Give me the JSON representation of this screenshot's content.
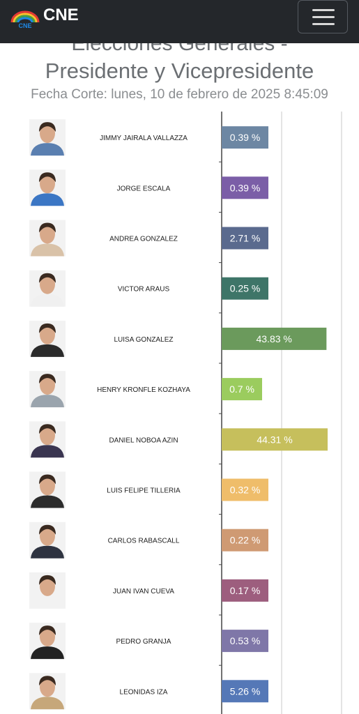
{
  "header": {
    "brand": "CNE",
    "logo_text": "CNE",
    "logo_icon": "cne-rainbow-logo-icon",
    "menu_icon": "hamburger-menu-icon"
  },
  "page": {
    "title_line1": "Elecciones Generales -",
    "title_line2": "Presidente y Vicepresidente",
    "cutoff": "Fecha Corte: lunes, 10 de febrero de 2025 8:45:09"
  },
  "chart_data": {
    "type": "bar",
    "orientation": "horizontal",
    "categories": [
      "JIMMY JAIRALA VALLAZZA",
      "JORGE ESCALA",
      "ANDREA GONZALEZ",
      "VICTOR ARAUS",
      "LUISA GONZALEZ",
      "HENRY KRONFLE KOZHAYA",
      "DANIEL NOBOA AZIN",
      "LUIS FELIPE TILLERIA",
      "CARLOS RABASCALL",
      "JUAN IVAN CUEVA",
      "PEDRO GRANJA",
      "LEONIDAS IZA"
    ],
    "values": [
      0.39,
      0.39,
      2.71,
      0.25,
      43.83,
      0.7,
      44.31,
      0.32,
      0.22,
      0.17,
      0.53,
      5.26
    ],
    "labels": [
      "0.39 %",
      "0.39 %",
      "2.71 %",
      "0.25 %",
      "43.83 %",
      "0.7 %",
      "44.31 %",
      "0.32 %",
      "0.22 %",
      "0.17 %",
      "0.53 %",
      "5.26 %"
    ],
    "colors": [
      "#6d87a3",
      "#7b5ea7",
      "#5a6a8e",
      "#3e7568",
      "#6b9a5c",
      "#9bcc5e",
      "#c6bf5c",
      "#efbd6a",
      "#cf9a73",
      "#9d5e7e",
      "#7f77a8",
      "#5578b7"
    ],
    "grid": true,
    "xlim": [
      0,
      45
    ]
  }
}
